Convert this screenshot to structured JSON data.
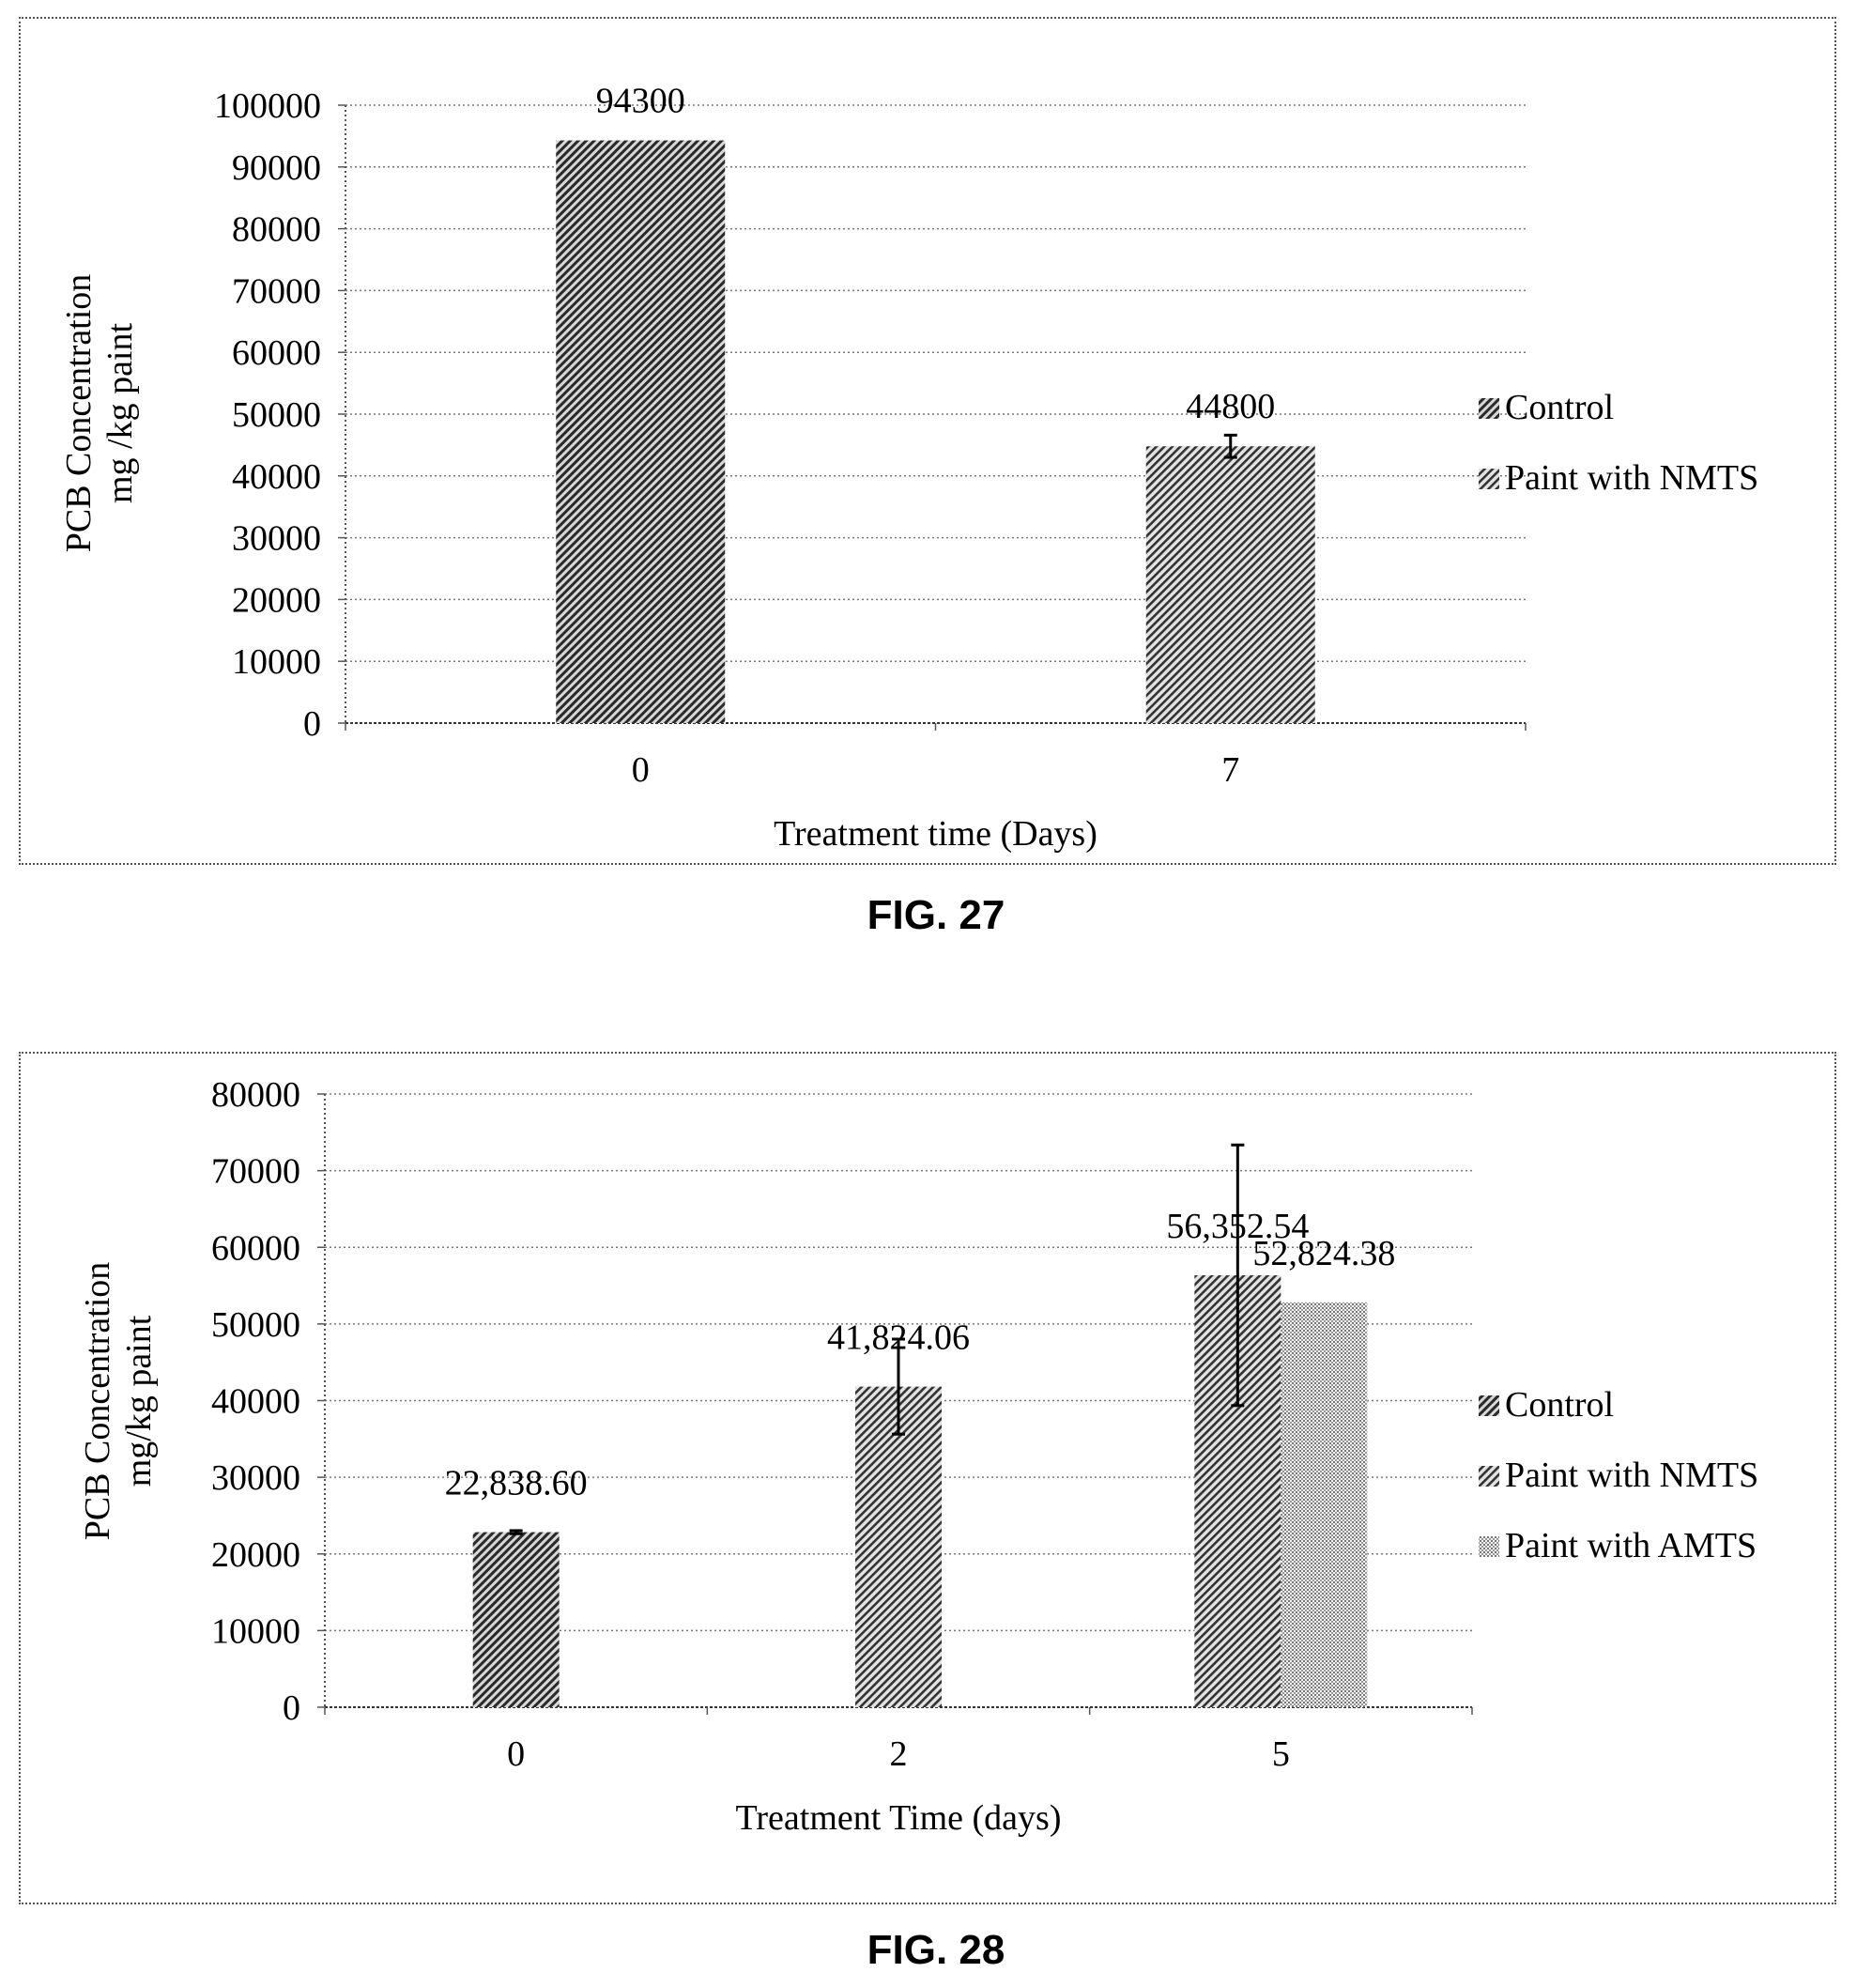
{
  "figures": [
    {
      "caption": "FIG. 27",
      "chart_data": {
        "type": "bar",
        "title": "",
        "xlabel": "Treatment time (Days)",
        "ylabel_line1": "PCB Concentration",
        "ylabel_line2": "mg /kg paint",
        "ylim": [
          0,
          100000
        ],
        "yticks": [
          0,
          10000,
          20000,
          30000,
          40000,
          50000,
          60000,
          70000,
          80000,
          90000,
          100000
        ],
        "grid": true,
        "legend": "right",
        "categories": [
          "0",
          "7"
        ],
        "series": [
          {
            "name": "Control",
            "values": [
              94300,
              null
            ],
            "labels": [
              "94300",
              null
            ],
            "errors": [
              null,
              null
            ],
            "pattern": "dense-hatch"
          },
          {
            "name": "Paint with NMTS",
            "values": [
              null,
              44800
            ],
            "labels": [
              null,
              "44800"
            ],
            "errors": [
              null,
              1800
            ],
            "pattern": "hatch"
          }
        ]
      }
    },
    {
      "caption": "FIG. 28",
      "chart_data": {
        "type": "bar",
        "title": "",
        "xlabel": "Treatment Time (days)",
        "ylabel_line1": "PCB Concentration",
        "ylabel_line2": "mg/kg paint",
        "ylim": [
          0,
          80000
        ],
        "yticks": [
          0,
          10000,
          20000,
          30000,
          40000,
          50000,
          60000,
          70000,
          80000
        ],
        "grid": true,
        "legend": "right",
        "categories": [
          "0",
          "2",
          "5"
        ],
        "series": [
          {
            "name": "Control",
            "values": [
              22838.6,
              null,
              null
            ],
            "labels": [
              "22,838.60",
              null,
              null
            ],
            "errors": [
              200,
              null,
              null
            ],
            "pattern": "dense-hatch"
          },
          {
            "name": "Paint with NMTS",
            "values": [
              null,
              41824.06,
              56352.54
            ],
            "labels": [
              null,
              "41,824.06",
              "56,352.54"
            ],
            "errors": [
              null,
              6200,
              17000
            ],
            "pattern": "hatch"
          },
          {
            "name": "Paint with AMTS",
            "values": [
              null,
              null,
              52824.38
            ],
            "labels": [
              null,
              null,
              "52,824.38"
            ],
            "errors": [
              null,
              null,
              null
            ],
            "pattern": "dots"
          }
        ]
      }
    }
  ]
}
